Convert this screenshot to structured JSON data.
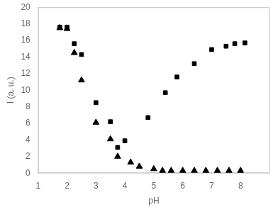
{
  "chart_data": {
    "type": "scatter",
    "xlabel": "pH",
    "ylabel": "I (a. u.)",
    "series": [
      {
        "marker": "square",
        "color": "black",
        "x": [
          1.75,
          2.0,
          2.25,
          2.5,
          3.0,
          3.5,
          3.75,
          4.0,
          4.8,
          5.4,
          5.8,
          6.4,
          7.0,
          7.5,
          7.8,
          8.15
        ],
        "values": [
          17.6,
          17.6,
          15.6,
          14.3,
          8.5,
          6.2,
          3.1,
          3.9,
          6.7,
          9.7,
          11.6,
          13.2,
          14.9,
          15.3,
          15.6,
          15.7
        ]
      },
      {
        "marker": "triangle",
        "color": "black",
        "x": [
          1.75,
          2.0,
          2.25,
          2.5,
          3.0,
          3.5,
          3.75,
          4.2,
          4.5,
          5.0,
          5.3,
          5.6,
          6.0,
          6.4,
          6.8,
          7.2,
          7.6,
          8.0
        ],
        "values": [
          17.5,
          17.4,
          14.5,
          11.2,
          6.1,
          4.1,
          2.0,
          1.3,
          0.8,
          0.5,
          0.3,
          0.3,
          0.3,
          0.3,
          0.3,
          0.3,
          0.3,
          0.3
        ]
      }
    ],
    "xlim": [
      1,
      9
    ],
    "ylim": [
      0,
      20
    ],
    "xticks": [
      1,
      2,
      3,
      4,
      5,
      6,
      7,
      8
    ],
    "yticks": [
      0,
      2,
      4,
      6,
      8,
      10,
      12,
      14,
      16,
      18,
      20
    ],
    "grid": false
  }
}
